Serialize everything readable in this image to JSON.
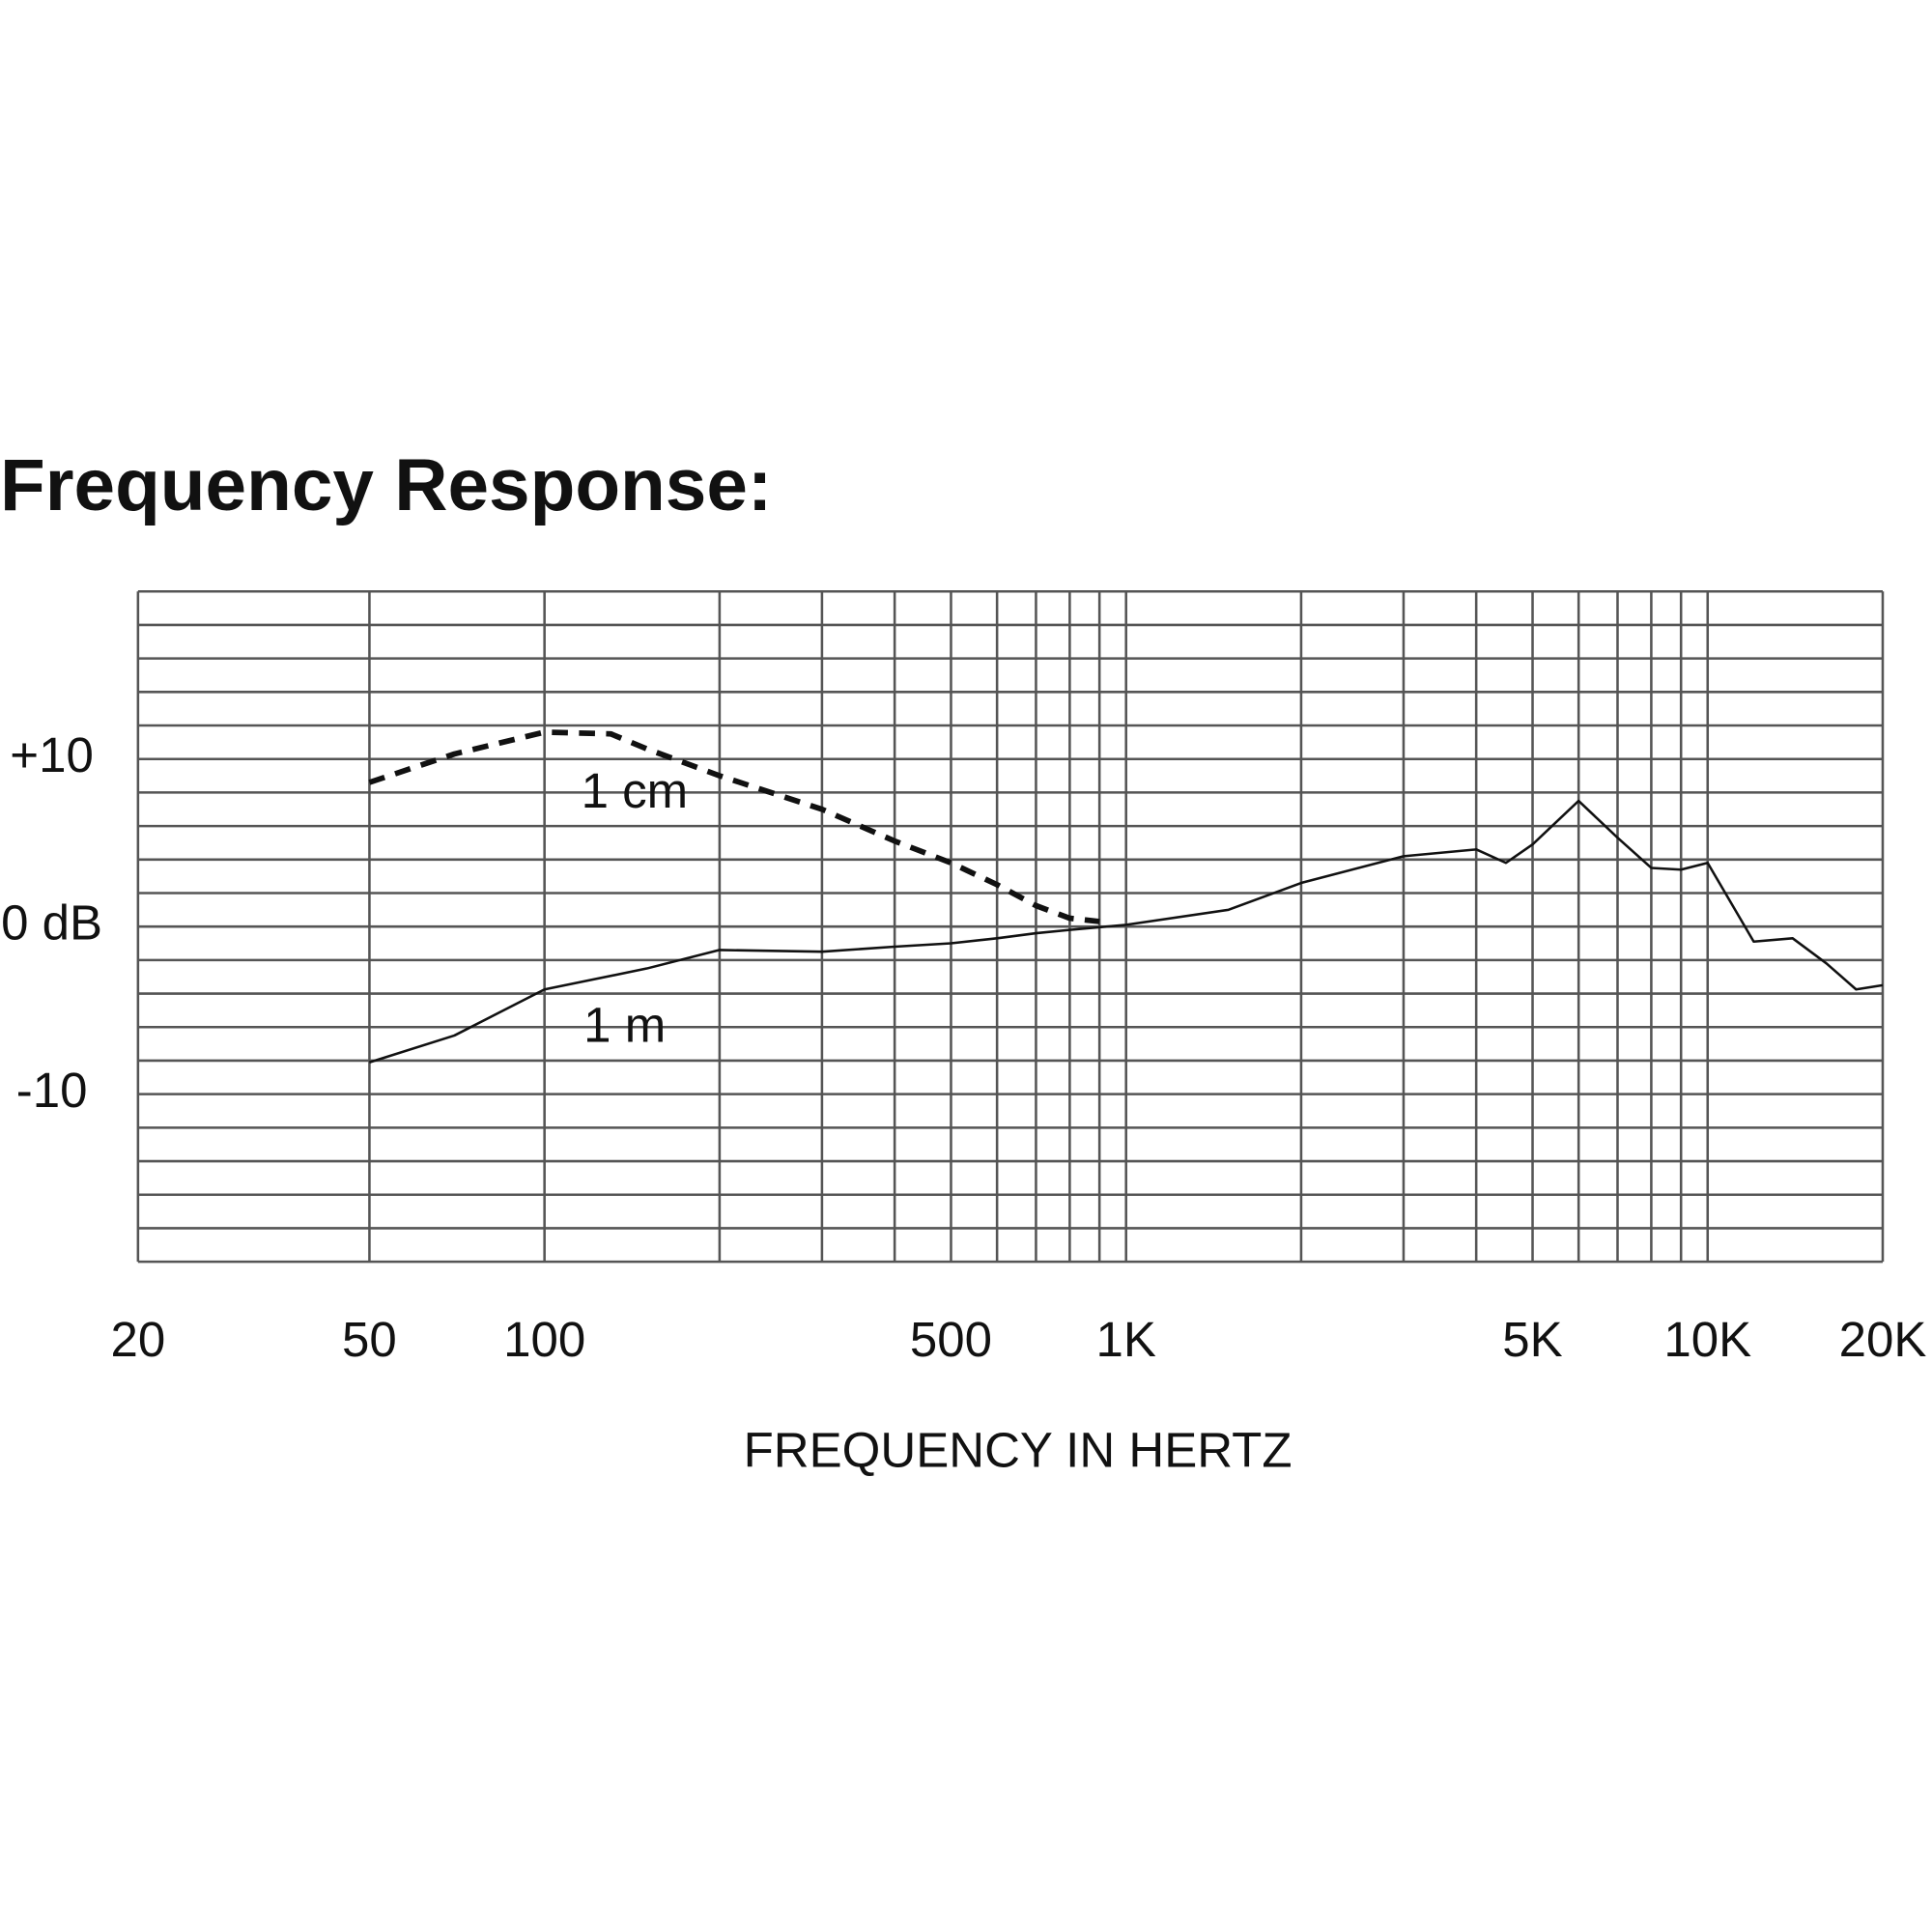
{
  "chart_data": {
    "type": "line",
    "title": "Frequency Response:",
    "x_label": "FREQUENCY IN HERTZ",
    "xscale": "log",
    "xlim": [
      20,
      20000
    ],
    "xticks": [
      20,
      50,
      100,
      500,
      {
        "value": 1000,
        "label": "1K"
      },
      {
        "value": 5000,
        "label": "5K"
      },
      {
        "value": 10000,
        "label": "10K"
      },
      {
        "value": 20000,
        "label": "20K"
      }
    ],
    "minor_xticks": [
      200,
      300,
      400,
      600,
      700,
      800,
      900,
      2000,
      3000,
      4000,
      6000,
      7000,
      8000,
      9000
    ],
    "ylim": [
      -20,
      20
    ],
    "yticks": [
      {
        "value": 10,
        "label": "+10"
      },
      {
        "value": 0,
        "label": "0 dB"
      },
      -10
    ],
    "minor_yticks": [
      -18,
      -16,
      -14,
      -12,
      -8,
      -6,
      -4,
      -2,
      2,
      4,
      6,
      8,
      12,
      14,
      16,
      18
    ],
    "grid": true,
    "series": [
      {
        "name": "1 cm",
        "color": "#111111",
        "dashed": true,
        "x": [
          50,
          70,
          100,
          130,
          150,
          200,
          300,
          400,
          500,
          600,
          700,
          800,
          900
        ],
        "values": [
          8.6,
          10.3,
          11.6,
          11.5,
          10.6,
          9.0,
          7.0,
          5.1,
          3.8,
          2.5,
          1.25,
          0.5,
          0.3
        ]
      },
      {
        "name": "1 m",
        "color": "#111111",
        "dashed": false,
        "x": [
          50,
          70,
          100,
          150,
          200,
          300,
          400,
          500,
          600,
          700,
          800,
          1000,
          1500,
          2000,
          3000,
          4000,
          4500,
          5000,
          6000,
          7000,
          8000,
          9000,
          10000,
          12000,
          14000,
          16000,
          18000,
          20000
        ],
        "values": [
          -8.1,
          -6.5,
          -3.75,
          -2.5,
          -1.4,
          -1.5,
          -1.2,
          -1.0,
          -0.7,
          -0.4,
          -0.2,
          0.1,
          1.0,
          2.6,
          4.2,
          4.6,
          3.8,
          4.9,
          7.5,
          5.3,
          3.5,
          3.4,
          3.8,
          -0.9,
          -0.7,
          -2.2,
          -3.75,
          -3.5
        ]
      }
    ]
  }
}
